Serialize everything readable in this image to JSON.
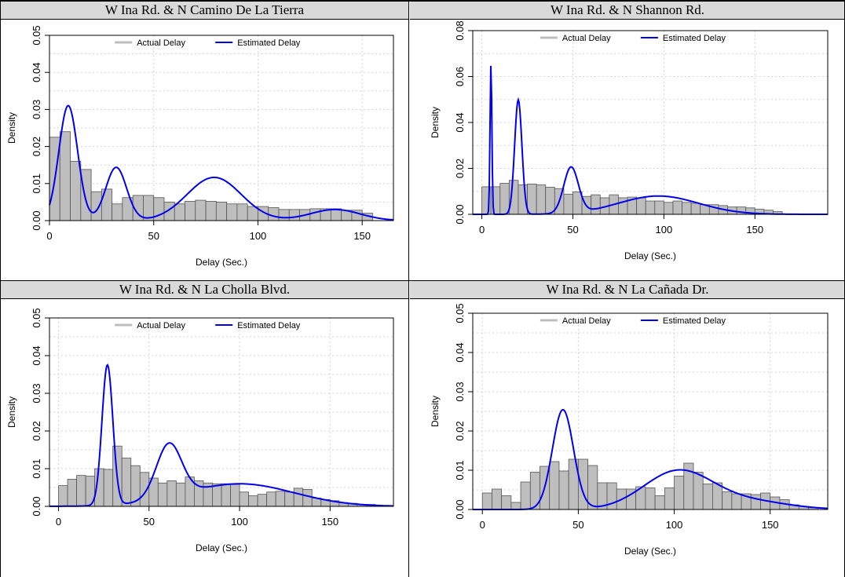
{
  "chart_data": [
    {
      "type": "bar",
      "title": "W Ina Rd. & N Camino De La Tierra",
      "xlabel": "Delay (Sec.)",
      "ylabel": "Density",
      "xlim": [
        0,
        165
      ],
      "ylim": [
        0,
        0.05
      ],
      "xticks": [
        "0",
        "50",
        "100",
        "150"
      ],
      "xtick_values": [
        0,
        50,
        100,
        150
      ],
      "yticks": [
        "0.00",
        "0.01",
        "0.02",
        "0.03",
        "0.04",
        "0.05"
      ],
      "ytick_values": [
        0,
        0.01,
        0.02,
        0.03,
        0.04,
        0.05
      ],
      "grid": true,
      "legend": "top-center",
      "series": [
        {
          "name": "Actual Delay",
          "kind": "histogram",
          "color": "#bebebe",
          "bin_width": 5,
          "bin_start": 0,
          "values": [
            0.0225,
            0.024,
            0.016,
            0.0138,
            0.0078,
            0.0085,
            0.0045,
            0.0062,
            0.0068,
            0.0068,
            0.0062,
            0.005,
            0.0045,
            0.0052,
            0.0055,
            0.0052,
            0.005,
            0.0045,
            0.0045,
            0.0038,
            0.0038,
            0.0035,
            0.003,
            0.003,
            0.003,
            0.0032,
            0.0032,
            0.0032,
            0.0028,
            0.0028,
            0.002
          ]
        },
        {
          "name": "Estimated Delay",
          "kind": "density",
          "color": "#0000ee",
          "components": [
            [
              0.35,
              9,
              4.5
            ],
            [
              0.18,
              32,
              5
            ],
            [
              0.38,
              79,
              13
            ],
            [
              0.09,
              137,
              12
            ]
          ]
        }
      ]
    },
    {
      "type": "bar",
      "title": "W Ina Rd. & N Shannon Rd.",
      "xlabel": "Delay (Sec.)",
      "ylabel": "Density",
      "xlim": [
        -5,
        190
      ],
      "ylim": [
        0,
        0.08
      ],
      "xticks": [
        "0",
        "50",
        "100",
        "150"
      ],
      "xtick_values": [
        0,
        50,
        100,
        150
      ],
      "yticks": [
        "0.00",
        "0.02",
        "0.04",
        "0.06",
        "0.08"
      ],
      "ytick_values": [
        0,
        0.02,
        0.04,
        0.06,
        0.08
      ],
      "grid": true,
      "legend": "top-center",
      "series": [
        {
          "name": "Actual Delay",
          "kind": "histogram",
          "color": "#bebebe",
          "bin_width": 5,
          "bin_start": 0,
          "values": [
            0.012,
            0.012,
            0.0135,
            0.0148,
            0.0128,
            0.0132,
            0.0128,
            0.0118,
            0.0112,
            0.0088,
            0.0098,
            0.0078,
            0.0085,
            0.0072,
            0.0085,
            0.0072,
            0.0075,
            0.0072,
            0.0058,
            0.0058,
            0.0052,
            0.0058,
            0.0052,
            0.0048,
            0.0042,
            0.0042,
            0.0038,
            0.0032,
            0.0032,
            0.0028,
            0.0022,
            0.0018,
            0.0012
          ]
        },
        {
          "name": "Estimated Delay",
          "kind": "density",
          "color": "#0000ee",
          "components": [
            [
              0.082,
              5,
              0.5
            ],
            [
              0.25,
              20,
              2
            ],
            [
              0.2,
              49,
              4
            ],
            [
              0.44,
              97,
              22
            ]
          ]
        }
      ]
    },
    {
      "type": "bar",
      "title": "W Ina Rd. & N La Cholla Blvd.",
      "xlabel": "Delay (Sec.)",
      "ylabel": "Density",
      "xlim": [
        -5,
        185
      ],
      "ylim": [
        0,
        0.05
      ],
      "xticks": [
        "0",
        "50",
        "100",
        "150"
      ],
      "xtick_values": [
        0,
        50,
        100,
        150
      ],
      "yticks": [
        "0.00",
        "0.01",
        "0.02",
        "0.03",
        "0.04",
        "0.05"
      ],
      "ytick_values": [
        0,
        0.01,
        0.02,
        0.03,
        0.04,
        0.05
      ],
      "grid": true,
      "legend": "top-center",
      "series": [
        {
          "name": "Actual Delay",
          "kind": "histogram",
          "color": "#bebebe",
          "bin_width": 5,
          "bin_start": 0,
          "values": [
            0.0055,
            0.0072,
            0.0082,
            0.008,
            0.01,
            0.0098,
            0.016,
            0.0128,
            0.0108,
            0.009,
            0.0075,
            0.0062,
            0.0068,
            0.0062,
            0.0078,
            0.0068,
            0.0062,
            0.006,
            0.006,
            0.0058,
            0.0038,
            0.0028,
            0.0032,
            0.0038,
            0.004,
            0.0038,
            0.0048,
            0.0045,
            0.0022,
            0.0018,
            0.0015,
            0.001,
            0.0008,
            0.0005,
            0.0005
          ]
        },
        {
          "name": "Estimated Delay",
          "kind": "density",
          "color": "#0000ee",
          "components": [
            [
              0.28,
              27,
              3
            ],
            [
              0.25,
              61,
              7
            ],
            [
              0.45,
              100,
              30
            ]
          ]
        }
      ]
    },
    {
      "type": "bar",
      "title": "W Ina Rd. & N La Cañada Dr.",
      "xlabel": "Delay (Sec.)",
      "ylabel": "Density",
      "xlim": [
        -5,
        180
      ],
      "ylim": [
        0,
        0.05
      ],
      "xticks": [
        "0",
        "50",
        "100",
        "150"
      ],
      "xtick_values": [
        0,
        50,
        100,
        150
      ],
      "yticks": [
        "0.00",
        "0.01",
        "0.02",
        "0.03",
        "0.04",
        "0.05"
      ],
      "ytick_values": [
        0,
        0.01,
        0.02,
        0.03,
        0.04,
        0.05
      ],
      "grid": true,
      "legend": "top-center",
      "series": [
        {
          "name": "Actual Delay",
          "kind": "histogram",
          "color": "#bebebe",
          "bin_width": 5,
          "bin_start": 0,
          "values": [
            0.0042,
            0.0052,
            0.0035,
            0.0018,
            0.007,
            0.0095,
            0.011,
            0.0122,
            0.0098,
            0.0128,
            0.0128,
            0.0112,
            0.0068,
            0.0068,
            0.0052,
            0.0052,
            0.0058,
            0.0055,
            0.0035,
            0.0055,
            0.0085,
            0.0118,
            0.0095,
            0.0065,
            0.0068,
            0.0045,
            0.004,
            0.004,
            0.0038,
            0.0042,
            0.0032,
            0.0025,
            0.0012,
            0.0008,
            0.0005
          ]
        },
        {
          "name": "Estimated Delay",
          "kind": "density",
          "color": "#0000ee",
          "components": [
            [
              0.35,
              42,
              5.5
            ],
            [
              0.44,
              102,
              18
            ],
            [
              0.1,
              140,
              20
            ]
          ]
        }
      ]
    }
  ]
}
